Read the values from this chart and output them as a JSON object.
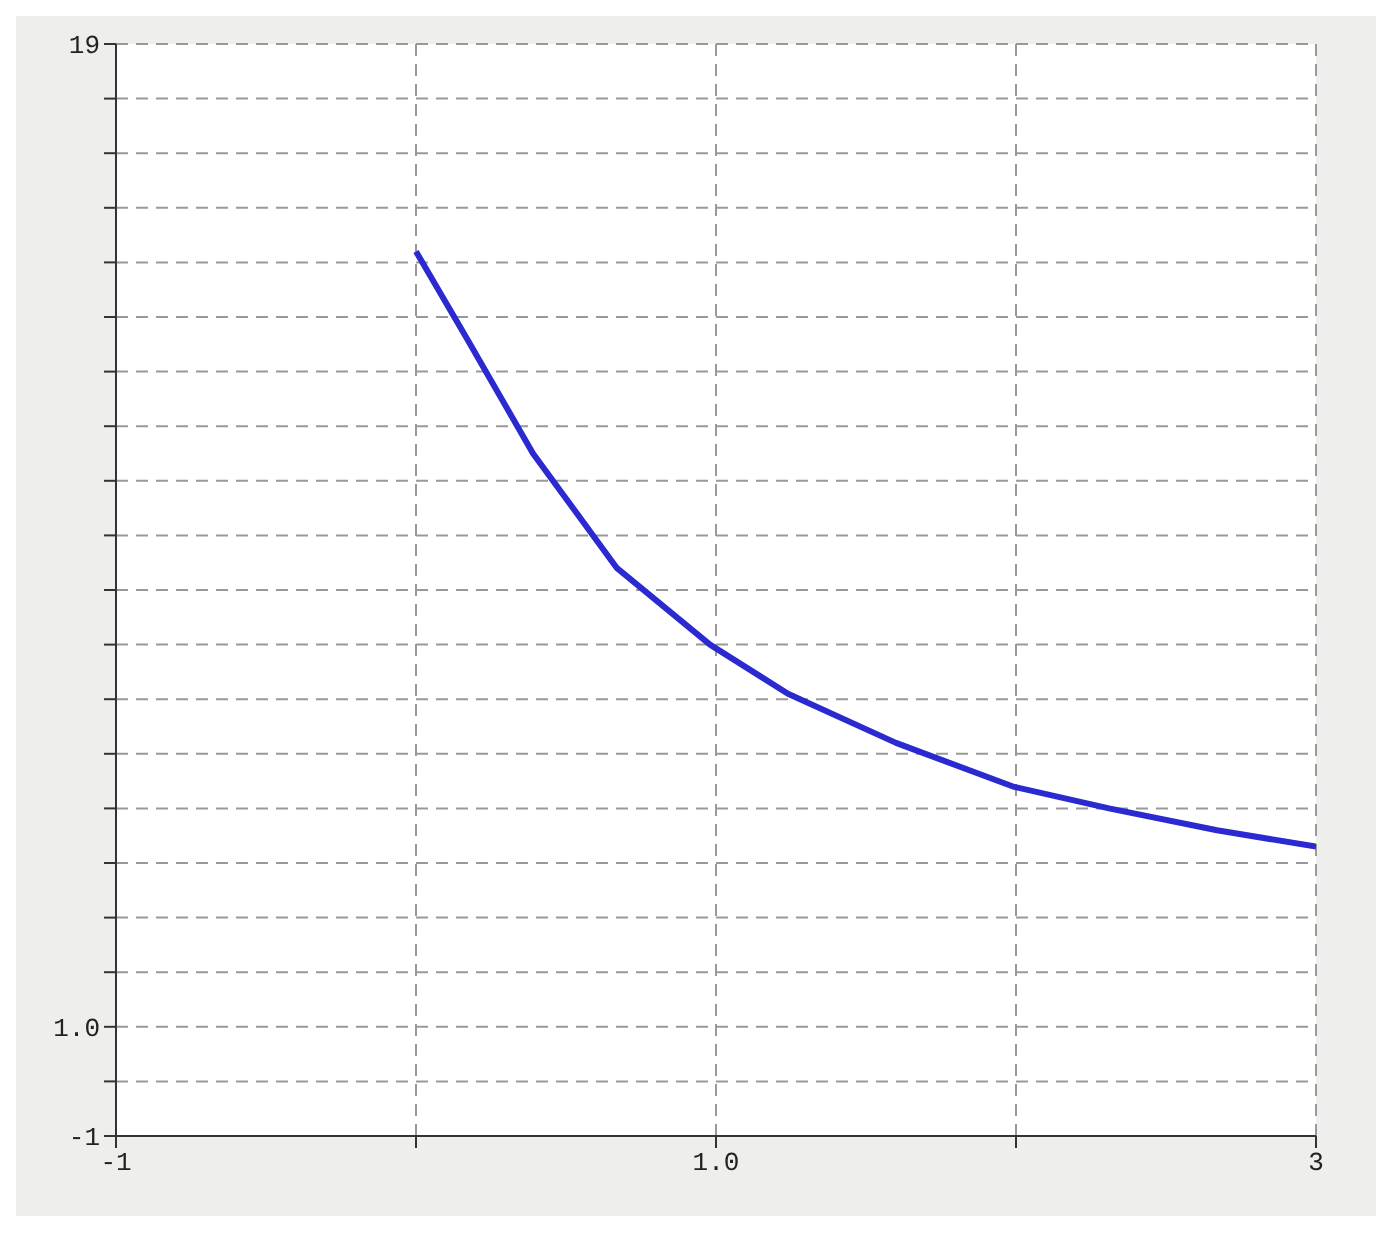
{
  "chart_data": {
    "type": "line",
    "x": [
      0,
      0.17,
      0.39,
      0.67,
      0.98,
      1.24,
      1.6,
      1.99,
      2.31,
      2.67,
      3.0
    ],
    "series": [
      {
        "color": "#2a2ad0",
        "values": [
          15.2,
          13.6,
          11.5,
          9.4,
          8.0,
          7.1,
          6.2,
          5.4,
          5.0,
          4.6,
          4.3
        ]
      }
    ],
    "xlim": [
      -1,
      3
    ],
    "xticks": [
      -1,
      {
        "value": 0,
        "label": null
      },
      {
        "value": 1,
        "label": "1.0"
      },
      {
        "value": 2,
        "label": null
      },
      3
    ],
    "ylim": [
      -1,
      19
    ],
    "yticks": [
      -1,
      {
        "value": 0,
        "label": null
      },
      {
        "value": 1,
        "label": "1.0"
      },
      {
        "value": 2,
        "label": null
      },
      {
        "value": 3,
        "label": null
      },
      {
        "value": 4,
        "label": null
      },
      {
        "value": 5,
        "label": null
      },
      {
        "value": 6,
        "label": null
      },
      {
        "value": 7,
        "label": null
      },
      {
        "value": 8,
        "label": null
      },
      {
        "value": 9,
        "label": null
      },
      {
        "value": 10,
        "label": null
      },
      {
        "value": 11,
        "label": null
      },
      {
        "value": 12,
        "label": null
      },
      {
        "value": 13,
        "label": null
      },
      {
        "value": 14,
        "label": null
      },
      {
        "value": 15,
        "label": null
      },
      {
        "value": 16,
        "label": null
      },
      {
        "value": 17,
        "label": null
      },
      {
        "value": 18,
        "label": null
      },
      19
    ],
    "grid": true,
    "marker": "none",
    "line_style": "solid"
  }
}
